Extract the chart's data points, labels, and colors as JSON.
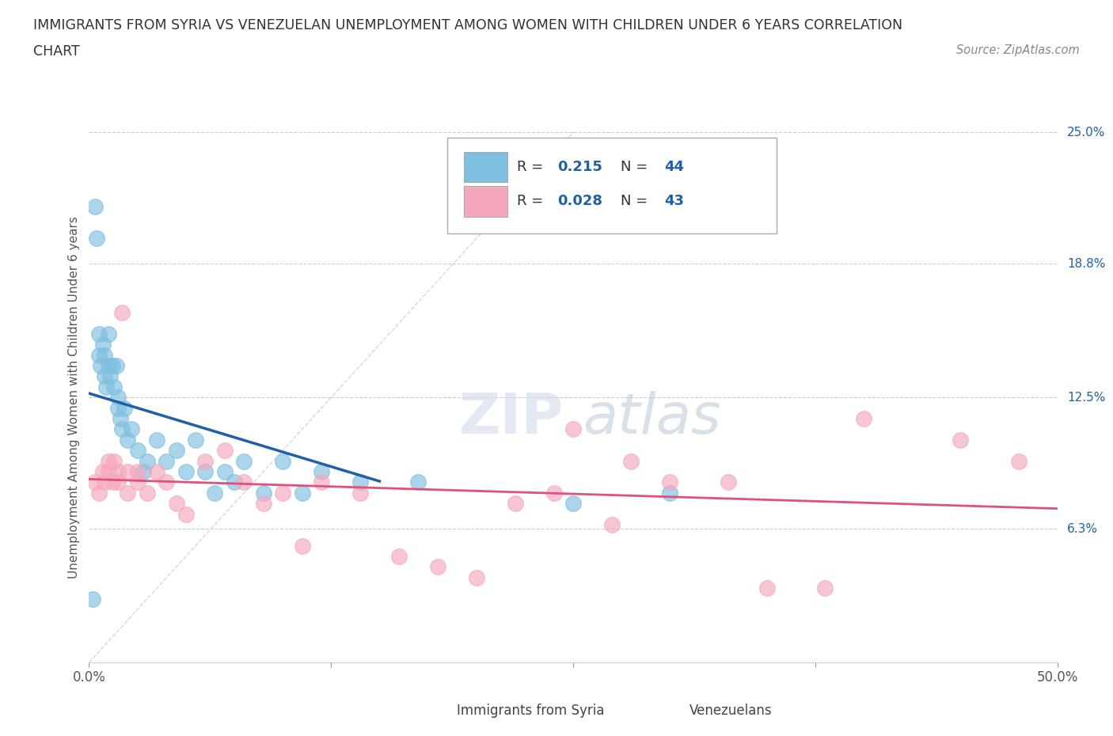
{
  "title_line1": "IMMIGRANTS FROM SYRIA VS VENEZUELAN UNEMPLOYMENT AMONG WOMEN WITH CHILDREN UNDER 6 YEARS CORRELATION",
  "title_line2": "CHART",
  "source": "Source: ZipAtlas.com",
  "ylabel": "Unemployment Among Women with Children Under 6 years",
  "xlim": [
    0,
    50
  ],
  "ylim": [
    0,
    25
  ],
  "y_ticks_right": [
    6.3,
    12.5,
    18.8,
    25.0
  ],
  "y_tick_labels_right": [
    "6.3%",
    "12.5%",
    "18.8%",
    "25.0%"
  ],
  "legend_label1": "Immigrants from Syria",
  "legend_label2": "Venezuelans",
  "color_blue": "#7fbfdf",
  "color_pink": "#f5a8bc",
  "color_blue_line": "#2060a8",
  "color_pink_line": "#e0507a",
  "color_diag": "#a8c4d8",
  "R1": 0.215,
  "N1": 44,
  "R2": 0.028,
  "N2": 43,
  "blue_points_x": [
    0.2,
    0.3,
    0.4,
    0.5,
    0.5,
    0.6,
    0.7,
    0.8,
    0.8,
    0.9,
    1.0,
    1.0,
    1.1,
    1.2,
    1.3,
    1.4,
    1.5,
    1.5,
    1.6,
    1.7,
    1.8,
    2.0,
    2.2,
    2.5,
    2.8,
    3.0,
    3.5,
    4.0,
    4.5,
    5.0,
    5.5,
    6.0,
    6.5,
    7.0,
    7.5,
    8.0,
    9.0,
    10.0,
    11.0,
    12.0,
    14.0,
    17.0,
    25.0,
    30.0
  ],
  "blue_points_y": [
    3.0,
    21.5,
    20.0,
    14.5,
    15.5,
    14.0,
    15.0,
    13.5,
    14.5,
    13.0,
    14.0,
    15.5,
    13.5,
    14.0,
    13.0,
    14.0,
    12.5,
    12.0,
    11.5,
    11.0,
    12.0,
    10.5,
    11.0,
    10.0,
    9.0,
    9.5,
    10.5,
    9.5,
    10.0,
    9.0,
    10.5,
    9.0,
    8.0,
    9.0,
    8.5,
    9.5,
    8.0,
    9.5,
    8.0,
    9.0,
    8.5,
    8.5,
    7.5,
    8.0
  ],
  "pink_points_x": [
    0.3,
    0.5,
    0.7,
    0.8,
    1.0,
    1.0,
    1.2,
    1.3,
    1.5,
    1.5,
    1.7,
    2.0,
    2.0,
    2.5,
    2.5,
    3.0,
    3.5,
    4.0,
    4.5,
    5.0,
    6.0,
    7.0,
    8.0,
    9.0,
    10.0,
    11.0,
    12.0,
    14.0,
    16.0,
    18.0,
    20.0,
    22.0,
    24.0,
    25.0,
    27.0,
    28.0,
    30.0,
    33.0,
    35.0,
    38.0,
    40.0,
    45.0,
    48.0
  ],
  "pink_points_y": [
    8.5,
    8.0,
    9.0,
    8.5,
    9.0,
    9.5,
    8.5,
    9.5,
    9.0,
    8.5,
    16.5,
    8.0,
    9.0,
    8.5,
    9.0,
    8.0,
    9.0,
    8.5,
    7.5,
    7.0,
    9.5,
    10.0,
    8.5,
    7.5,
    8.0,
    5.5,
    8.5,
    8.0,
    5.0,
    4.5,
    4.0,
    7.5,
    8.0,
    11.0,
    6.5,
    9.5,
    8.5,
    8.5,
    3.5,
    3.5,
    11.5,
    10.5,
    9.5
  ],
  "watermark_zip": "ZIP",
  "watermark_atlas": "atlas",
  "background_color": "#ffffff",
  "grid_color": "#cccccc"
}
